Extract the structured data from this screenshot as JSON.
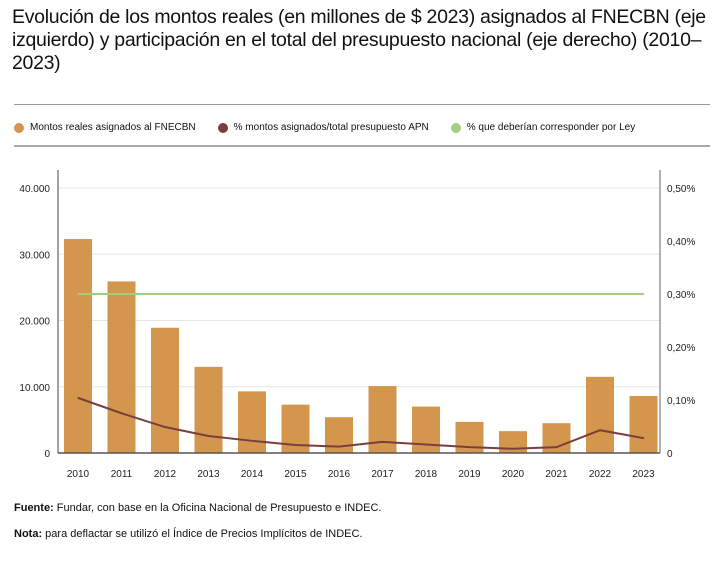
{
  "title": "Evolución de los montos reales (en millones de $ 2023) asignados al FNECBN (eje izquierdo) y participación en el total del presupuesto nacional (eje derecho) (2010–2023)",
  "legend": [
    {
      "label": "Montos reales asignados al FNECBN",
      "color": "#d4964c"
    },
    {
      "label": "% montos asignados/total presupuesto APN",
      "color": "#7a3e3e"
    },
    {
      "label": "% que deberían corresponder por Ley",
      "color": "#a6cc82"
    }
  ],
  "chart_data": {
    "type": "bar",
    "categories": [
      "2010",
      "2011",
      "2012",
      "2013",
      "2014",
      "2015",
      "2016",
      "2017",
      "2018",
      "2019",
      "2020",
      "2021",
      "2022",
      "2023"
    ],
    "series": [
      {
        "name": "Montos reales asignados al FNECBN",
        "type": "bar",
        "axis": "left",
        "color": "#d4964c",
        "values": [
          32300,
          25900,
          18900,
          13000,
          9300,
          7300,
          5400,
          10100,
          7000,
          4700,
          3300,
          4500,
          11500,
          8600
        ]
      },
      {
        "name": "% montos asignados/total presupuesto APN",
        "type": "line",
        "axis": "right",
        "color": "#7a3e3e",
        "values": [
          0.104,
          0.075,
          0.049,
          0.032,
          0.023,
          0.015,
          0.012,
          0.021,
          0.016,
          0.011,
          0.008,
          0.011,
          0.043,
          0.028
        ]
      },
      {
        "name": "% que deberían corresponder por Ley",
        "type": "line",
        "axis": "right",
        "color": "#a6cc82",
        "values": [
          0.3,
          0.3,
          0.3,
          0.3,
          0.3,
          0.3,
          0.3,
          0.3,
          0.3,
          0.3,
          0.3,
          0.3,
          0.3,
          0.3
        ]
      }
    ],
    "y_left": {
      "lim": [
        0,
        40000
      ],
      "ticks": [
        0,
        10000,
        20000,
        30000,
        40000
      ],
      "tick_labels": [
        "0",
        "10.000",
        "20.000",
        "30.000",
        "40.000"
      ]
    },
    "y_right": {
      "lim": [
        0,
        0.5
      ],
      "ticks": [
        0,
        0.1,
        0.2,
        0.3,
        0.4,
        0.5
      ],
      "tick_labels": [
        "0",
        "0,10%",
        "0,20%",
        "0,30%",
        "0,40%",
        "0,50%"
      ]
    },
    "grid": true,
    "legend_position": "top"
  },
  "footer": {
    "source_label": "Fuente:",
    "source_text": " Fundar, con base en la Oficina Nacional de Presupuesto e INDEC.",
    "note_label": "Nota:",
    "note_text": " para deflactar se utilizó el Índice de Precios Implícitos de INDEC."
  }
}
